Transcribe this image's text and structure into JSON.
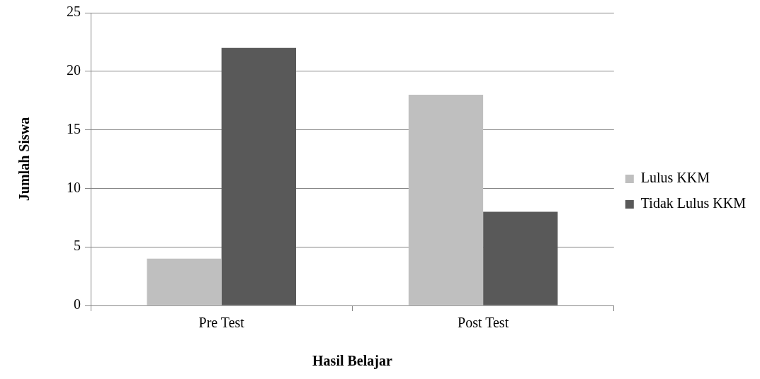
{
  "chart_data": {
    "type": "bar",
    "xlabel": "Hasil Belajar",
    "ylabel": "Jumlah Siswa",
    "categories": [
      "Pre Test",
      "Post Test"
    ],
    "series": [
      {
        "name": "Lulus KKM",
        "color": "#bfbfbf",
        "values": [
          4,
          18
        ]
      },
      {
        "name": "Tidak Lulus KKM",
        "color": "#595959",
        "values": [
          22,
          8
        ]
      }
    ],
    "ylim": [
      0,
      25
    ],
    "yticks": [
      0,
      5,
      10,
      15,
      20,
      25
    ],
    "grid": "y",
    "legend": "right"
  }
}
